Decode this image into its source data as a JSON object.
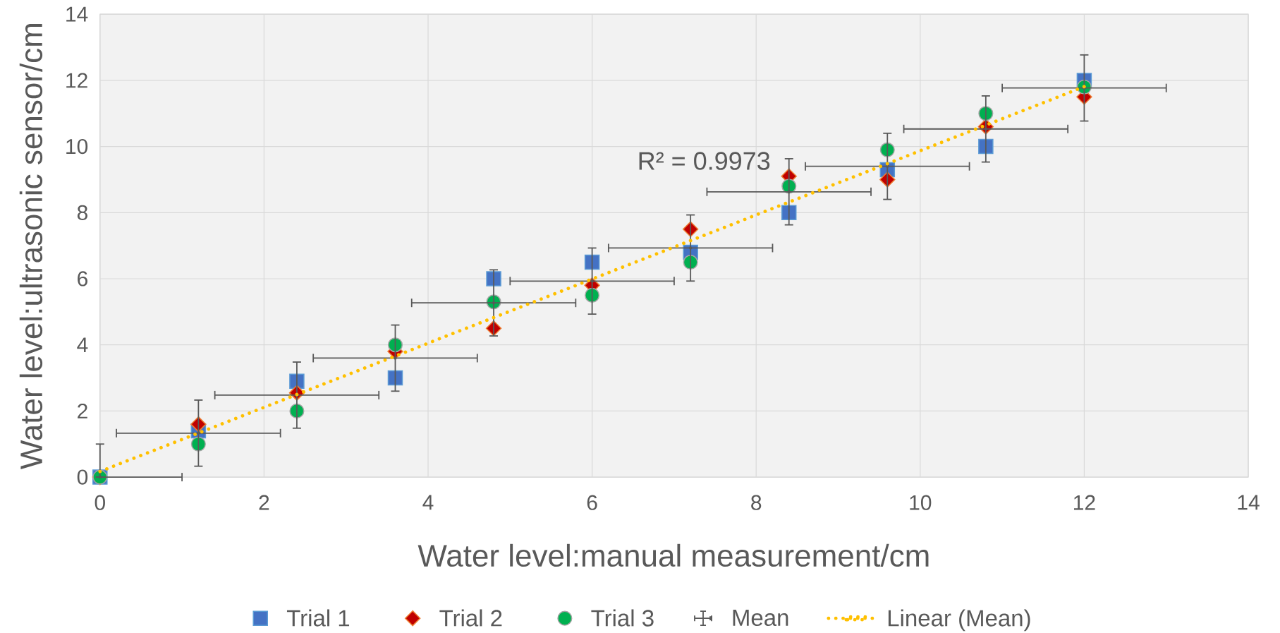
{
  "chart_data": {
    "type": "scatter",
    "xlabel": "Water level:manual measurement/cm",
    "ylabel": "Water level:ultrasonic sensor/cm",
    "annotations": [
      "R² = 0.9973"
    ],
    "x": [
      0,
      1.2,
      2.4,
      3.6,
      4.8,
      6.0,
      7.2,
      8.4,
      9.6,
      10.8,
      12.0
    ],
    "xlim": [
      0,
      14
    ],
    "ylim": [
      0,
      14
    ],
    "xticks": [
      0,
      2,
      4,
      6,
      8,
      10,
      12,
      14
    ],
    "yticks": [
      0,
      2,
      4,
      6,
      8,
      10,
      12,
      14
    ],
    "grid": true,
    "legend": "bottom",
    "series": [
      {
        "name": "Trial 1",
        "color": "#4472c4",
        "marker": "square",
        "values": [
          0,
          1.4,
          2.9,
          3.0,
          6.0,
          6.5,
          6.8,
          8.0,
          9.3,
          10.0,
          12.0
        ]
      },
      {
        "name": "Trial 2",
        "color": "#c00000",
        "marker": "diamond",
        "values": [
          0,
          1.6,
          2.55,
          3.8,
          4.5,
          5.8,
          7.5,
          9.1,
          9.0,
          10.6,
          11.5
        ]
      },
      {
        "name": "Trial 3",
        "color": "#00b050",
        "marker": "circle",
        "values": [
          0,
          1.0,
          2.0,
          4.0,
          5.3,
          5.5,
          6.5,
          8.8,
          9.9,
          11.0,
          11.8
        ]
      },
      {
        "name": "Mean",
        "color": "#595959",
        "marker": "none",
        "values": [
          0,
          1.33,
          2.48,
          3.6,
          5.27,
          5.93,
          6.93,
          8.63,
          9.4,
          10.53,
          11.77
        ],
        "errors": [
          [
            0,
            1
          ],
          1,
          1,
          1,
          1,
          1,
          1,
          1,
          1,
          1,
          1
        ],
        "xerrors": [
          [
            0,
            1
          ],
          1,
          1,
          1,
          1,
          1,
          1,
          1,
          1,
          1,
          1
        ]
      },
      {
        "name": "Linear (Mean)",
        "type": "line",
        "color": "#ffc000",
        "line_style": "dotted",
        "marker": "none",
        "x": [
          0,
          12
        ],
        "values": [
          0.17,
          11.81
        ]
      }
    ]
  }
}
